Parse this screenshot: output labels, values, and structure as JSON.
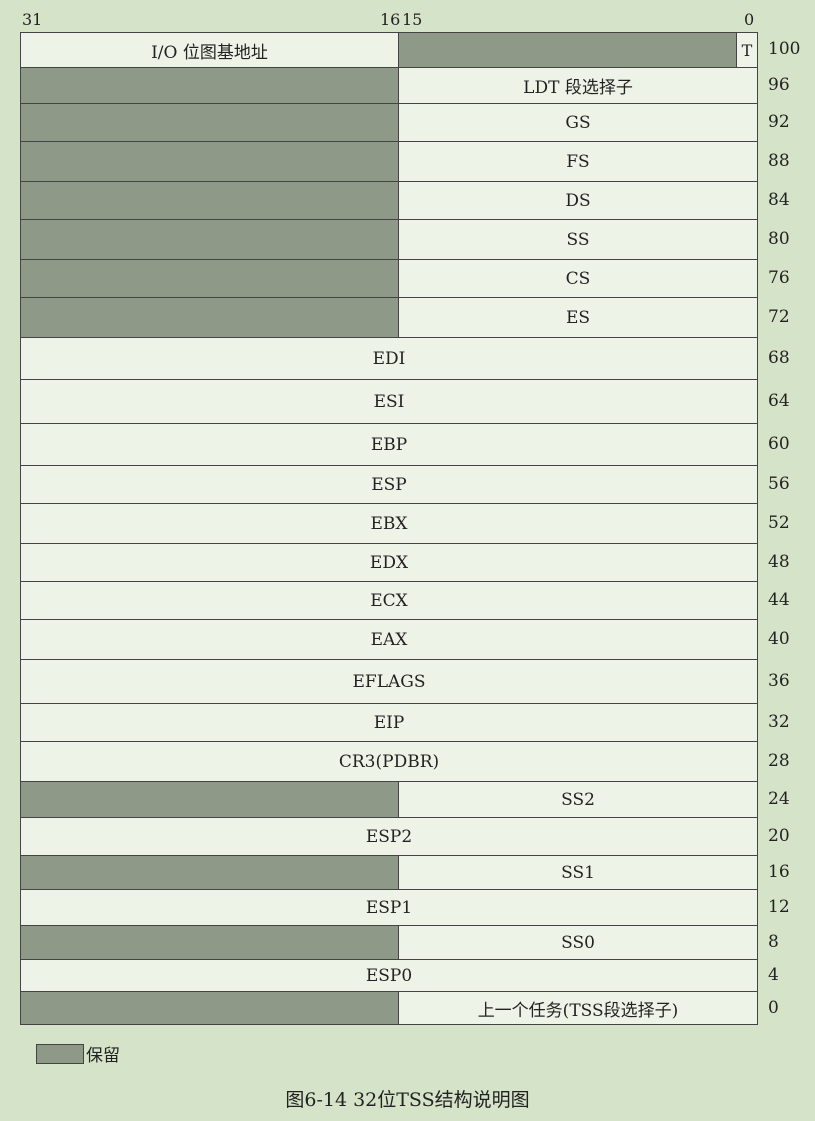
{
  "bit_labels": {
    "b31": "31",
    "b16": "16",
    "b15": "15",
    "b0": "0"
  },
  "rows": [
    {
      "offset": "100",
      "high": "I/O 位图基地址",
      "high_reserved": false,
      "low": "",
      "low_reserved": true,
      "flag": "T"
    },
    {
      "offset": "96",
      "high_reserved": true,
      "low": "LDT 段选择子"
    },
    {
      "offset": "92",
      "high_reserved": true,
      "low": "GS"
    },
    {
      "offset": "88",
      "high_reserved": true,
      "low": "FS"
    },
    {
      "offset": "84",
      "high_reserved": true,
      "low": "DS"
    },
    {
      "offset": "80",
      "high_reserved": true,
      "low": "SS"
    },
    {
      "offset": "76",
      "high_reserved": true,
      "low": "CS"
    },
    {
      "offset": "72",
      "high_reserved": true,
      "low": "ES"
    },
    {
      "offset": "68",
      "full": "EDI"
    },
    {
      "offset": "64",
      "full": "ESI"
    },
    {
      "offset": "60",
      "full": "EBP"
    },
    {
      "offset": "56",
      "full": "ESP"
    },
    {
      "offset": "52",
      "full": "EBX"
    },
    {
      "offset": "48",
      "full": "EDX"
    },
    {
      "offset": "44",
      "full": "ECX"
    },
    {
      "offset": "40",
      "full": "EAX"
    },
    {
      "offset": "36",
      "full": "EFLAGS"
    },
    {
      "offset": "32",
      "full": "EIP"
    },
    {
      "offset": "28",
      "full": "CR3(PDBR)"
    },
    {
      "offset": "24",
      "high_reserved": true,
      "low": "SS2"
    },
    {
      "offset": "20",
      "full": "ESP2"
    },
    {
      "offset": "16",
      "high_reserved": true,
      "low": "SS1"
    },
    {
      "offset": "12",
      "full": "ESP1"
    },
    {
      "offset": "8",
      "high_reserved": true,
      "low": "SS0"
    },
    {
      "offset": "4",
      "full": "ESP0"
    },
    {
      "offset": "0",
      "high_reserved": true,
      "low": "上一个任务(TSS段选择子)"
    }
  ],
  "legend": {
    "label": "保留"
  },
  "caption": "图6-14    32位TSS结构说明图",
  "colors": {
    "reserved": "#8e9a87",
    "field": "#eef3e8",
    "background": "#d5e3c8"
  }
}
